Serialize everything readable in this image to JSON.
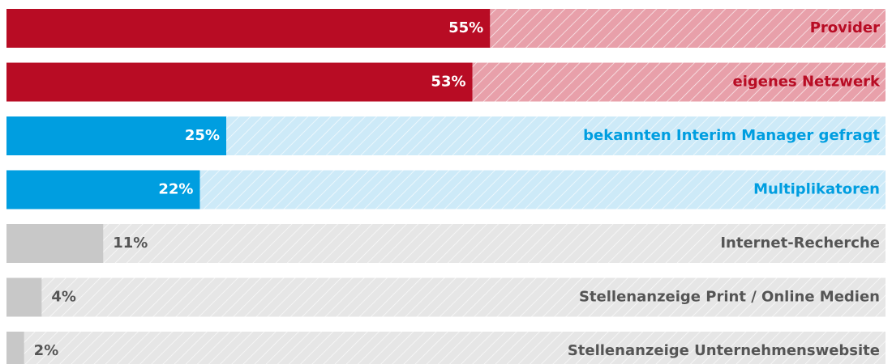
{
  "chart_data": {
    "type": "bar",
    "orientation": "horizontal",
    "categories": [
      "Provider",
      "eigenes Netzwerk",
      "bekannten Interim Manager gefragt",
      "Multiplikatoren",
      "Internet-Recherche",
      "Stellenanzeige Print / Online Medien",
      "Stellenanzeige Unternehmenswebsite"
    ],
    "values": [
      55,
      53,
      25,
      22,
      11,
      4,
      2
    ],
    "value_labels": [
      "55%",
      "53%",
      "25%",
      "22%",
      "11%",
      "4%",
      "2%"
    ],
    "colors": [
      "#b80c24",
      "#b80c24",
      "#009ee0",
      "#009ee0",
      "#c8c8c8",
      "#c8c8c8",
      "#c8c8c8"
    ],
    "track_colors": [
      "#e8a0aa",
      "#e8a0aa",
      "#cdeaf8",
      "#cdeaf8",
      "#e6e6e6",
      "#e6e6e6",
      "#e6e6e6"
    ],
    "label_colors": [
      "#b80c24",
      "#b80c24",
      "#009ee0",
      "#009ee0",
      "#555555",
      "#555555",
      "#555555"
    ],
    "xlim": [
      0,
      100
    ]
  }
}
